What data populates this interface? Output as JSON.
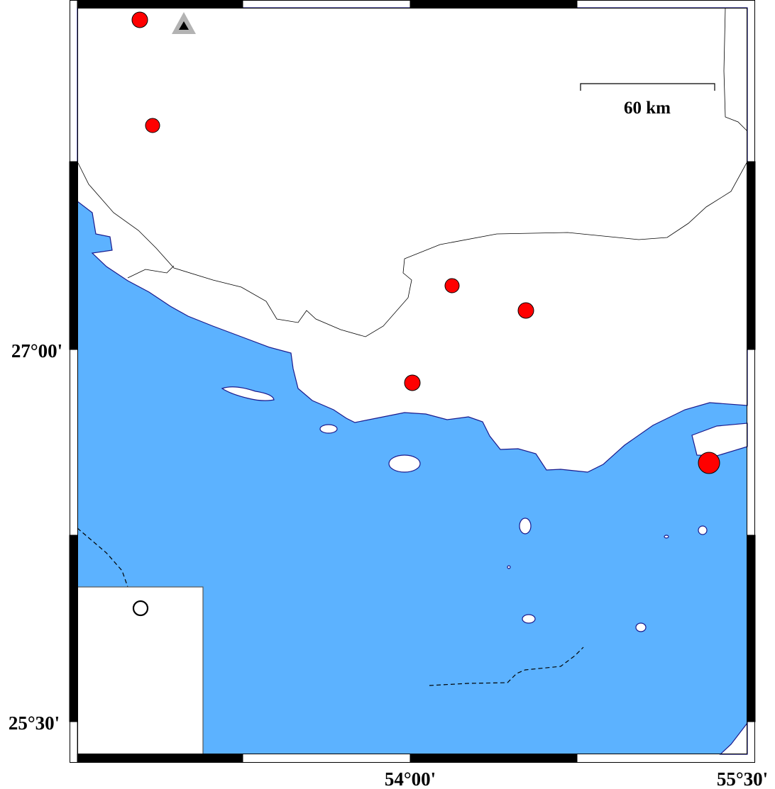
{
  "map": {
    "colors": {
      "sea": "#5cb2ff",
      "land": "#ffffff",
      "coastline": "#1a1a8c",
      "event": "#ff0000",
      "station": "#b3b3b3"
    },
    "lat_labels": [
      "27°00'",
      "25°30'"
    ],
    "lon_labels": [
      "54°00'",
      "55°30'"
    ],
    "scale_bar": {
      "label": "60 km"
    },
    "station": {
      "icon": "triangle-icon"
    },
    "events_icon": "circle-icon",
    "legend": {
      "symbol": "open-circle-icon"
    }
  }
}
